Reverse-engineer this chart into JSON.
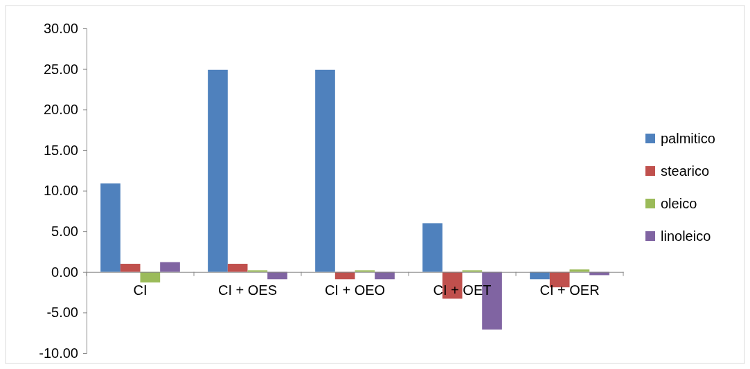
{
  "chart_data": {
    "type": "bar",
    "categories": [
      "CI",
      "CI + OES",
      "CI + OEO",
      "CI + OET",
      "CI + OER"
    ],
    "series": [
      {
        "name": "palmitico",
        "color": "#4f81bd",
        "values": [
          10.9,
          24.9,
          24.9,
          6.0,
          -0.9
        ]
      },
      {
        "name": "stearico",
        "color": "#c0504d",
        "values": [
          1.0,
          1.0,
          -0.9,
          -3.3,
          -1.9
        ]
      },
      {
        "name": "oleico",
        "color": "#9bbb59",
        "values": [
          -1.3,
          0.2,
          0.2,
          0.2,
          0.3
        ]
      },
      {
        "name": "linoleico",
        "color": "#8064a2",
        "values": [
          1.2,
          -0.9,
          -0.9,
          -7.1,
          -0.4
        ]
      }
    ],
    "ylim": [
      -10,
      30
    ],
    "yticks": [
      {
        "value": -10,
        "label": "-10.00"
      },
      {
        "value": -5,
        "label": "-5.00"
      },
      {
        "value": 0,
        "label": "0.00"
      },
      {
        "value": 5,
        "label": "5.00"
      },
      {
        "value": 10,
        "label": "10.00"
      },
      {
        "value": 15,
        "label": "15.00"
      },
      {
        "value": 20,
        "label": "20.00"
      },
      {
        "value": 25,
        "label": "25.00"
      },
      {
        "value": 30,
        "label": "30.00"
      }
    ],
    "grid": false,
    "legend": "right"
  }
}
